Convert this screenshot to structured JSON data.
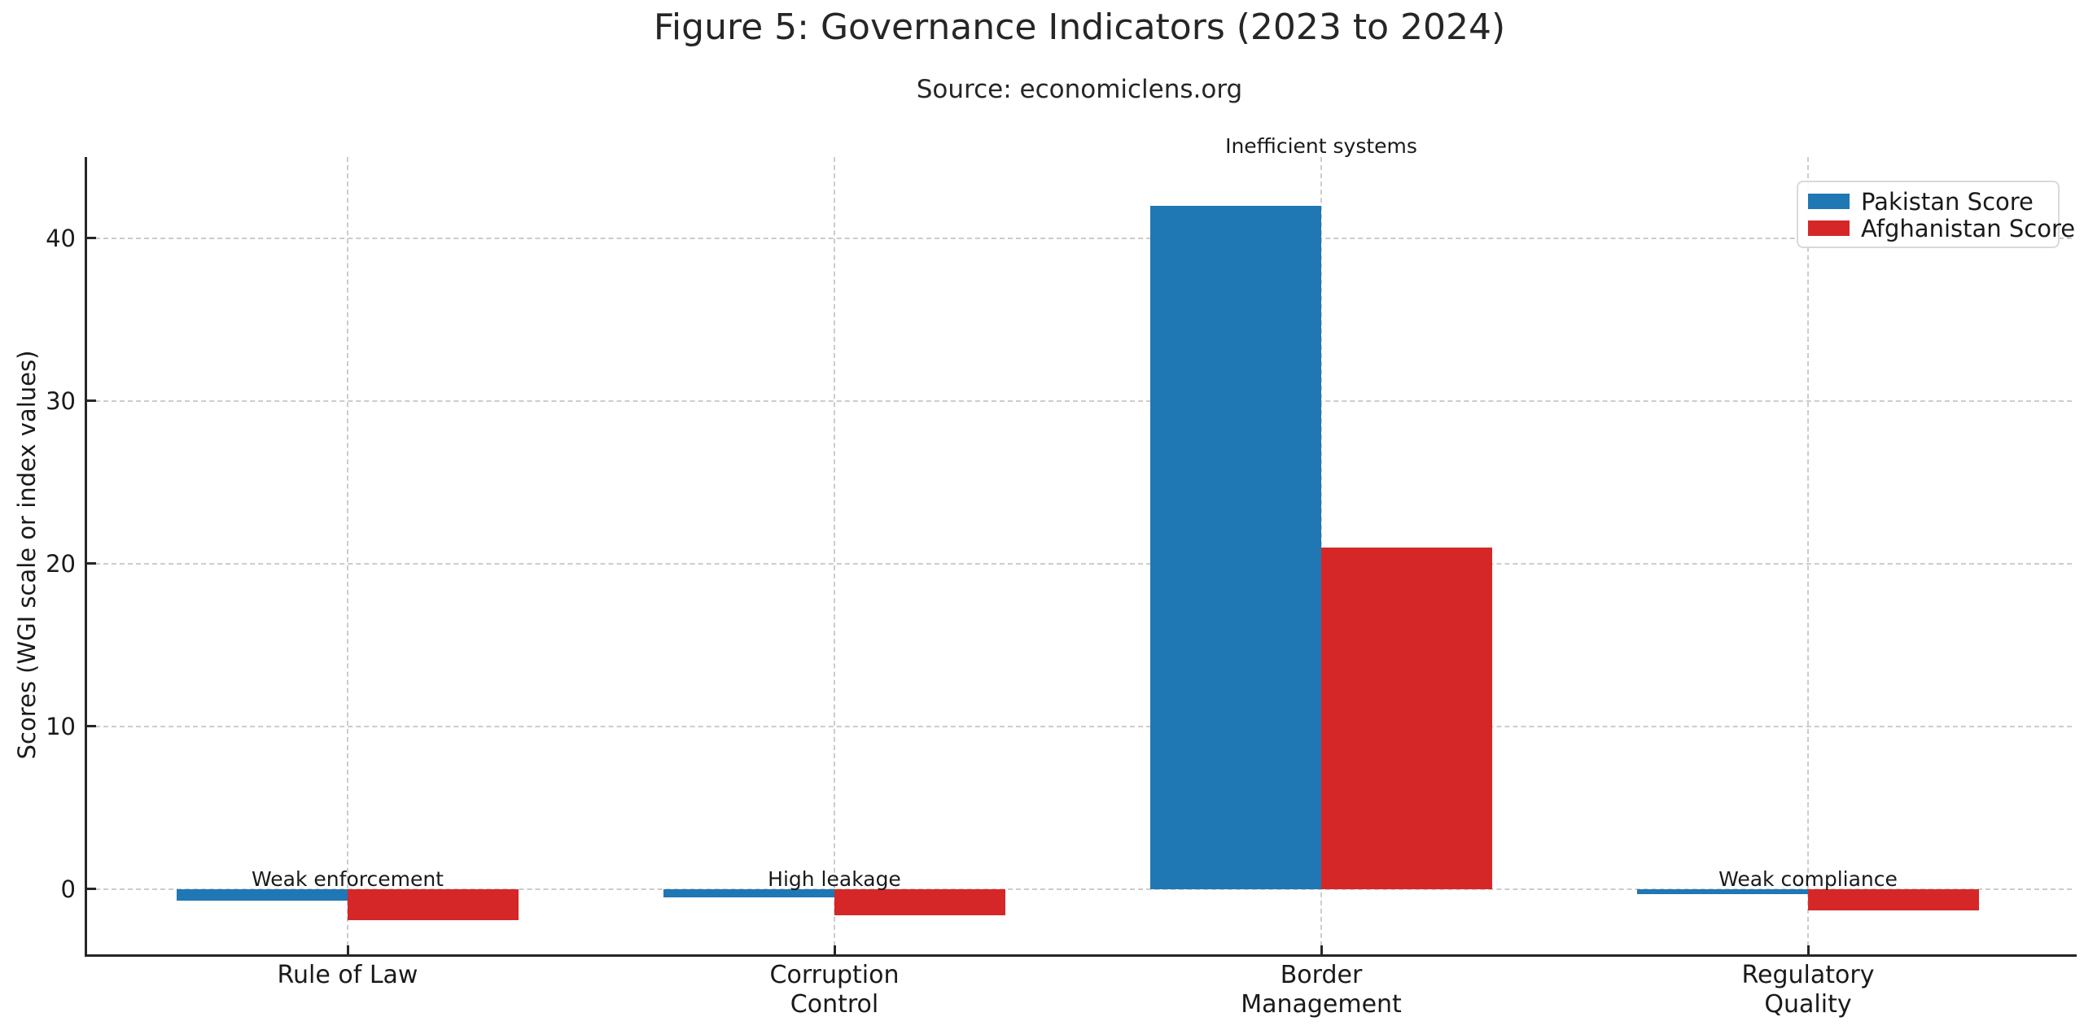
{
  "chart_data": {
    "type": "bar",
    "title": "Figure 5: Governance Indicators (2023 to 2024)",
    "subtitle": "Source: economiclens.org",
    "ylabel": "Scores (WGI scale or index values)",
    "xlabel": "",
    "categories": [
      "Rule of Law",
      "Corruption\nControl",
      "Border\nManagement",
      "Regulatory\nQuality"
    ],
    "series": [
      {
        "name": "Pakistan Score",
        "color": "#1f77b4",
        "values": [
          -0.7,
          -0.5,
          42,
          -0.3
        ]
      },
      {
        "name": "Afghanistan Score",
        "color": "#d62728",
        "values": [
          -1.9,
          -1.6,
          21,
          -1.3
        ]
      }
    ],
    "annotations": [
      {
        "text": "Weak enforcement",
        "category_index": 0,
        "placement": "above-zero-line"
      },
      {
        "text": "High leakage",
        "category_index": 1,
        "placement": "above-zero-line"
      },
      {
        "text": "Inefficient systems",
        "category_index": 2,
        "placement": "above-bar"
      },
      {
        "text": "Weak compliance",
        "category_index": 3,
        "placement": "above-zero-line"
      }
    ],
    "yticks": [
      0,
      10,
      20,
      30,
      40
    ],
    "ylim": [
      -4,
      45
    ],
    "grid": true,
    "grid_style": "dashed",
    "grid_color": "#cccccc",
    "axis_color": "#262626",
    "text_color": "#1a1a1a",
    "legend_position": "upper-right",
    "legend_entries": [
      "Pakistan Score",
      "Afghanistan Score"
    ]
  }
}
